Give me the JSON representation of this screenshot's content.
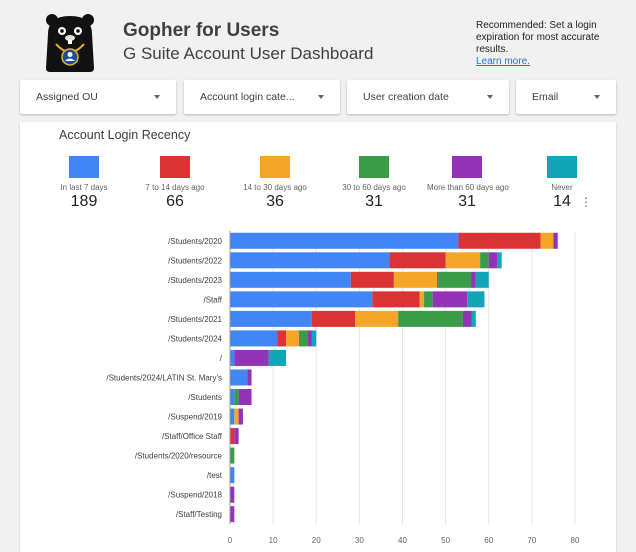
{
  "header": {
    "title": "Gopher for Users",
    "subtitle": "G Suite Account User Dashboard",
    "recommendation": "Recommended:  Set a login expiration for most accurate results.",
    "learn_more": "Learn more."
  },
  "filters": [
    {
      "label": "Assigned OU"
    },
    {
      "label": "Account login cate..."
    },
    {
      "label": "User creation date"
    },
    {
      "label": "Email"
    }
  ],
  "chart_data": {
    "type": "bar",
    "orientation": "horizontal",
    "stacked": true,
    "title": "Account Login Recency",
    "xlim": [
      0,
      80
    ],
    "x_ticks": [
      0,
      10,
      20,
      30,
      40,
      50,
      60,
      70,
      80
    ],
    "grid": true,
    "legend_position": "top",
    "categories": [
      "/Students/2020",
      "/Students/2022",
      "/Students/2023",
      "/Staff",
      "/Students/2021",
      "/Students/2024",
      "/",
      "/Students/2024/LATIN St. Mary's",
      "/Students",
      "/Suspend/2019",
      "/Staff/Office Staff",
      "/Students/2020/resource",
      "/test",
      "/Suspend/2018",
      "/Staff/Testing"
    ],
    "series": [
      {
        "name": "In last 7 days",
        "total": "189",
        "color": "#4285f4",
        "values": [
          53,
          37,
          28,
          33,
          19,
          11,
          1,
          4,
          1,
          1,
          0,
          0,
          1,
          0,
          0
        ]
      },
      {
        "name": "7 to 14 days ago",
        "total": "66",
        "color": "#db3236",
        "values": [
          19,
          13,
          10,
          11,
          10,
          2,
          0,
          0,
          0,
          0,
          1,
          0,
          0,
          0,
          0
        ]
      },
      {
        "name": "14 to 30 days ago",
        "total": "36",
        "color": "#f4a62a",
        "values": [
          3,
          8,
          10,
          1,
          10,
          3,
          0,
          0,
          0,
          1,
          0,
          0,
          0,
          0,
          0
        ]
      },
      {
        "name": "30 to 60 days ago",
        "total": "31",
        "color": "#3a9b48",
        "values": [
          0,
          2,
          8,
          2,
          15,
          2,
          0,
          0,
          1,
          0,
          0,
          1,
          0,
          0,
          0
        ]
      },
      {
        "name": "More than 60 days ago",
        "total": "31",
        "color": "#9333b6",
        "values": [
          1,
          2,
          1,
          8,
          2,
          1,
          8,
          1,
          3,
          1,
          1,
          0,
          0,
          1,
          1
        ]
      },
      {
        "name": "Never",
        "total": "14",
        "color": "#12a5b8",
        "values": [
          0,
          1,
          3,
          4,
          1,
          1,
          4,
          0,
          0,
          0,
          0,
          0,
          0,
          0,
          0
        ]
      }
    ]
  }
}
